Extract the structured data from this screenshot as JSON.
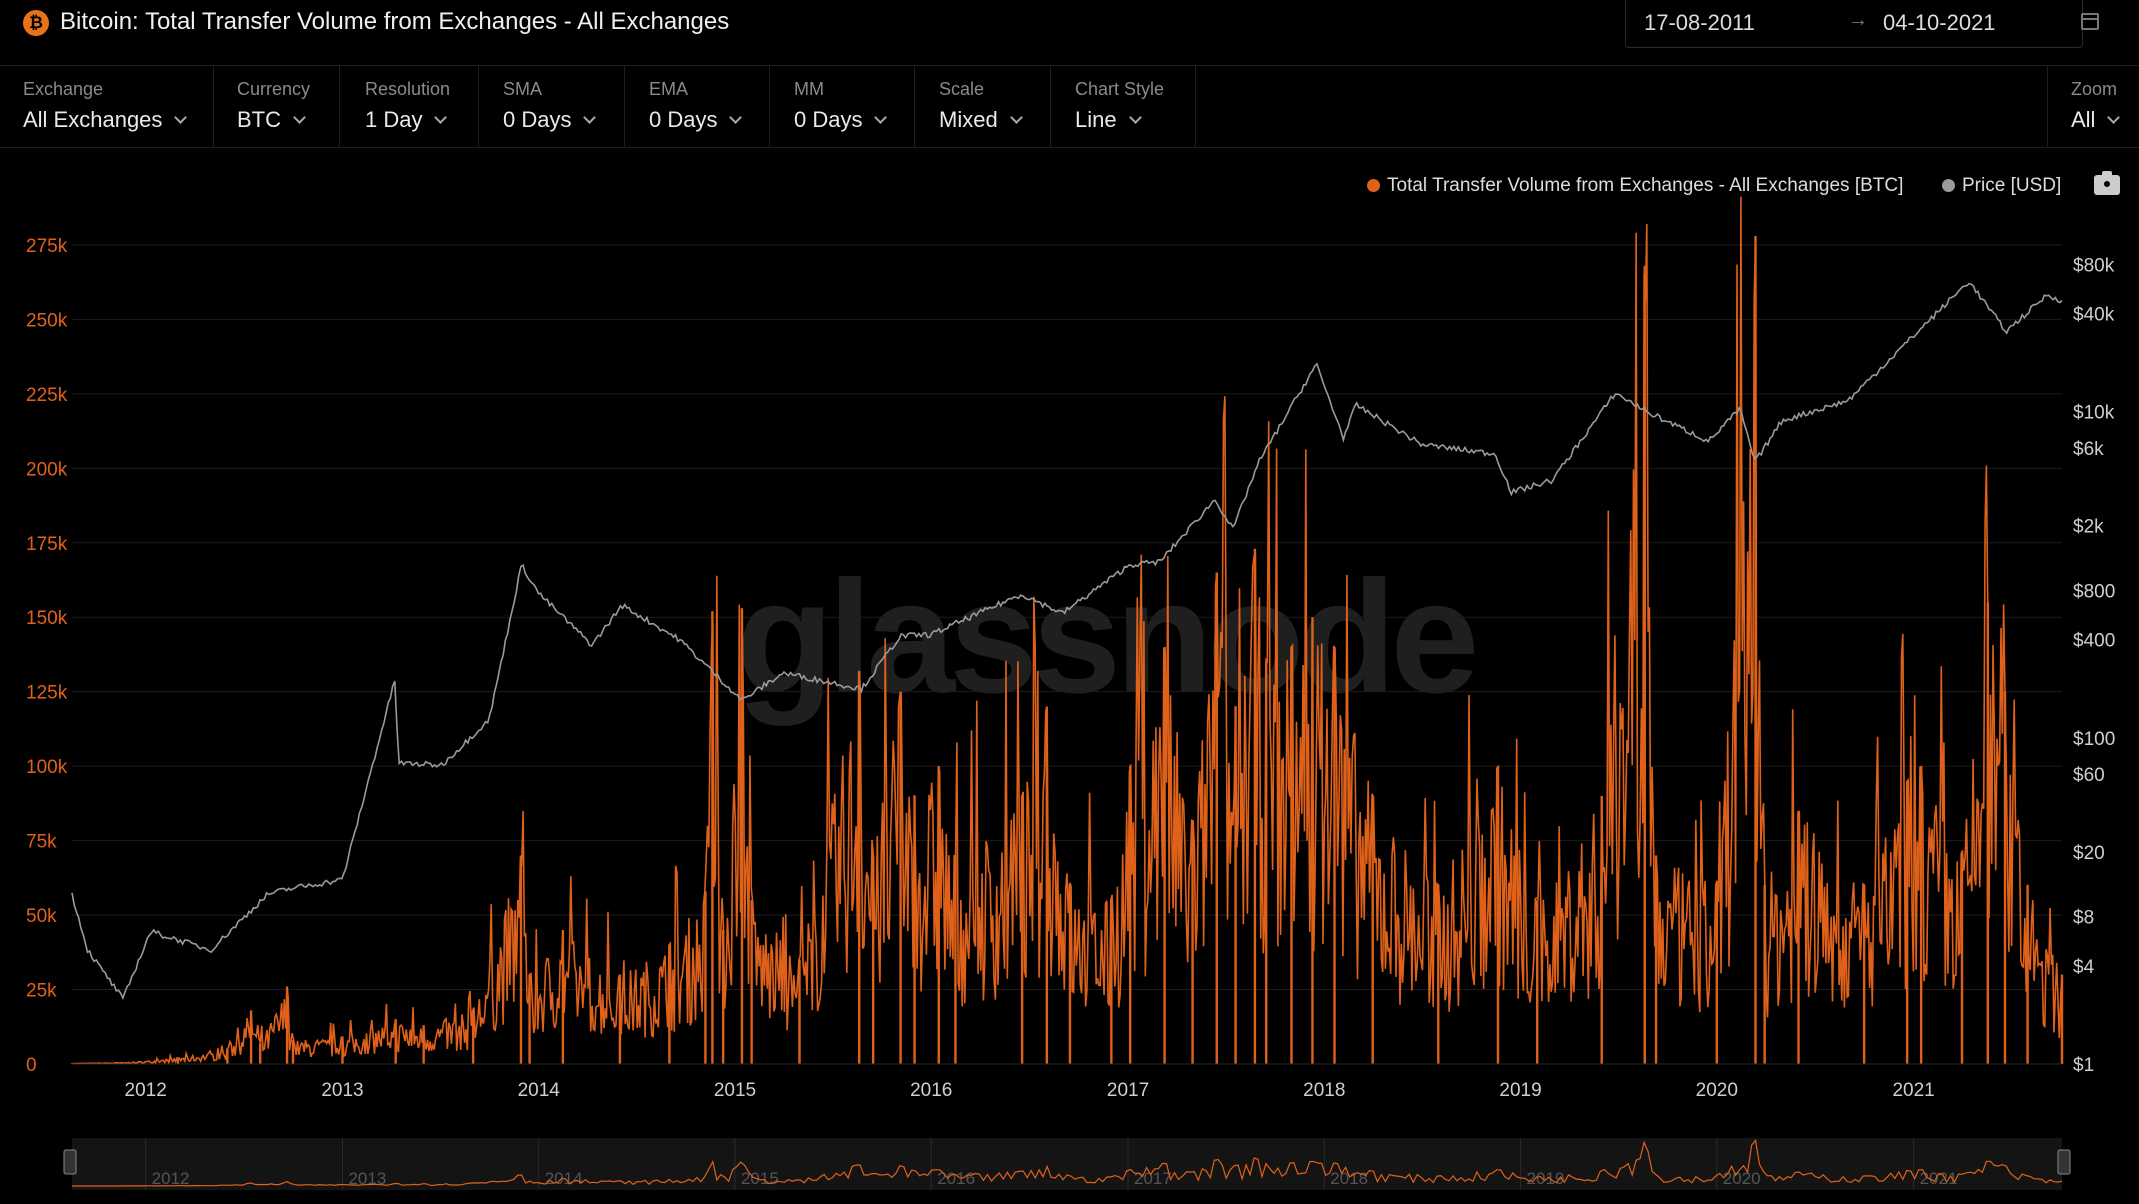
{
  "header": {
    "logo_symbol": "₿",
    "title": "Bitcoin: Total Transfer Volume from Exchanges - All Exchanges",
    "date_from": "17-08-2011",
    "date_arrow": "→",
    "date_to": "04-10-2021",
    "calendar_icon": "calendar-icon"
  },
  "controls": [
    {
      "label": "Exchange",
      "value": "All Exchanges"
    },
    {
      "label": "Currency",
      "value": "BTC"
    },
    {
      "label": "Resolution",
      "value": "1 Day"
    },
    {
      "label": "SMA",
      "value": "0 Days"
    },
    {
      "label": "EMA",
      "value": "0 Days"
    },
    {
      "label": "MM",
      "value": "0 Days"
    },
    {
      "label": "Scale",
      "value": "Mixed"
    },
    {
      "label": "Chart Style",
      "value": "Line"
    }
  ],
  "zoom": {
    "label": "Zoom",
    "value": "All"
  },
  "legend": {
    "volume": "Total Transfer Volume from Exchanges - All Exchanges [BTC]",
    "price": "Price [USD]"
  },
  "watermark": "glassnode",
  "colors": {
    "volume": "#e0621a",
    "price": "#9a9a9a",
    "background": "#000000",
    "grid": "#1c1c1c"
  },
  "chart_data": {
    "type": "line",
    "x_range": [
      "2011-08-17",
      "2021-10-04"
    ],
    "x_ticks": [
      "2012",
      "2013",
      "2014",
      "2015",
      "2016",
      "2017",
      "2018",
      "2019",
      "2020",
      "2021"
    ],
    "left_axis": {
      "ticks": [
        0,
        25000,
        50000,
        75000,
        100000,
        125000,
        150000,
        175000,
        200000,
        225000,
        250000,
        275000
      ],
      "tick_labels": [
        "0",
        "25k",
        "50k",
        "75k",
        "100k",
        "125k",
        "150k",
        "175k",
        "200k",
        "225k",
        "250k",
        "275k"
      ],
      "range": [
        0,
        280000
      ],
      "scale": "linear"
    },
    "right_axis": {
      "ticks": [
        1,
        4,
        8,
        20,
        60,
        100,
        400,
        800,
        2000,
        6000,
        10000,
        40000,
        80000
      ],
      "tick_labels": [
        "$1",
        "$4",
        "$8",
        "$20",
        "$60",
        "$100",
        "$400",
        "$800",
        "$2k",
        "$6k",
        "$10k",
        "$40k",
        "$80k"
      ],
      "scale": "log"
    },
    "series": [
      {
        "name": "Total Transfer Volume from Exchanges - All Exchanges [BTC]",
        "axis": "left",
        "points": [
          [
            "2011-08-17",
            200
          ],
          [
            "2011-12-01",
            500
          ],
          [
            "2012-03-01",
            2000
          ],
          [
            "2012-06-01",
            5000
          ],
          [
            "2012-07-15",
            18000
          ],
          [
            "2012-08-01",
            7000
          ],
          [
            "2012-09-20",
            26000
          ],
          [
            "2012-10-01",
            8000
          ],
          [
            "2013-01-01",
            9000
          ],
          [
            "2013-04-10",
            15000
          ],
          [
            "2013-06-01",
            13000
          ],
          [
            "2013-09-01",
            18000
          ],
          [
            "2013-11-29",
            70000
          ],
          [
            "2013-12-15",
            30000
          ],
          [
            "2014-02-15",
            45000
          ],
          [
            "2014-06-01",
            30000
          ],
          [
            "2014-09-01",
            40000
          ],
          [
            "2014-11-07",
            58000
          ],
          [
            "2014-11-20",
            152000
          ],
          [
            "2014-12-10",
            45000
          ],
          [
            "2015-01-14",
            153000
          ],
          [
            "2015-02-01",
            55000
          ],
          [
            "2015-05-01",
            35000
          ],
          [
            "2015-08-20",
            132000
          ],
          [
            "2015-09-15",
            70000
          ],
          [
            "2015-11-05",
            125000
          ],
          [
            "2015-12-01",
            90000
          ],
          [
            "2016-01-15",
            100000
          ],
          [
            "2016-02-15",
            70000
          ],
          [
            "2016-06-18",
            90000
          ],
          [
            "2016-08-03",
            120000
          ],
          [
            "2016-09-15",
            60000
          ],
          [
            "2016-12-01",
            55000
          ],
          [
            "2017-01-05",
            100000
          ],
          [
            "2017-03-10",
            140000
          ],
          [
            "2017-05-01",
            80000
          ],
          [
            "2017-06-15",
            165000
          ],
          [
            "2017-07-20",
            120000
          ],
          [
            "2017-08-25",
            173000
          ],
          [
            "2017-09-15",
            135000
          ],
          [
            "2017-11-01",
            140000
          ],
          [
            "2017-12-10",
            150000
          ],
          [
            "2018-01-20",
            140000
          ],
          [
            "2018-04-01",
            90000
          ],
          [
            "2018-08-01",
            60000
          ],
          [
            "2018-11-20",
            100000
          ],
          [
            "2019-02-01",
            55000
          ],
          [
            "2019-06-01",
            90000
          ],
          [
            "2019-08-20",
            268000
          ],
          [
            "2019-09-10",
            70000
          ],
          [
            "2020-01-01",
            60000
          ],
          [
            "2020-03-13",
            278000
          ],
          [
            "2020-03-30",
            60000
          ],
          [
            "2020-06-01",
            85000
          ],
          [
            "2020-10-01",
            60000
          ],
          [
            "2020-12-20",
            95000
          ],
          [
            "2021-01-15",
            100000
          ],
          [
            "2021-04-01",
            70000
          ],
          [
            "2021-05-19",
            155000
          ],
          [
            "2021-06-20",
            125000
          ],
          [
            "2021-08-01",
            60000
          ],
          [
            "2021-10-04",
            30000
          ]
        ]
      },
      {
        "name": "Price [USD]",
        "axis": "right",
        "points": [
          [
            "2011-08-17",
            11
          ],
          [
            "2011-09-15",
            5
          ],
          [
            "2011-11-20",
            2.5
          ],
          [
            "2012-01-10",
            6.5
          ],
          [
            "2012-05-01",
            5
          ],
          [
            "2012-08-15",
            11
          ],
          [
            "2012-10-01",
            12
          ],
          [
            "2013-01-01",
            13.5
          ],
          [
            "2013-04-09",
            230
          ],
          [
            "2013-04-15",
            70
          ],
          [
            "2013-07-05",
            68
          ],
          [
            "2013-10-01",
            130
          ],
          [
            "2013-11-30",
            1150
          ],
          [
            "2014-01-01",
            770
          ],
          [
            "2014-04-10",
            370
          ],
          [
            "2014-06-05",
            650
          ],
          [
            "2014-09-20",
            400
          ],
          [
            "2015-01-14",
            170
          ],
          [
            "2015-04-01",
            250
          ],
          [
            "2015-08-25",
            200
          ],
          [
            "2015-11-04",
            420
          ],
          [
            "2016-01-01",
            430
          ],
          [
            "2016-06-17",
            760
          ],
          [
            "2016-09-01",
            580
          ],
          [
            "2017-01-04",
            1150
          ],
          [
            "2017-03-01",
            1200
          ],
          [
            "2017-06-12",
            2900
          ],
          [
            "2017-07-15",
            1900
          ],
          [
            "2017-09-01",
            4900
          ],
          [
            "2017-12-17",
            19500
          ],
          [
            "2018-02-06",
            6900
          ],
          [
            "2018-03-01",
            11000
          ],
          [
            "2018-07-01",
            6300
          ],
          [
            "2018-11-15",
            5500
          ],
          [
            "2018-12-15",
            3200
          ],
          [
            "2019-03-01",
            3800
          ],
          [
            "2019-06-26",
            13000
          ],
          [
            "2019-09-01",
            9700
          ],
          [
            "2019-12-17",
            6600
          ],
          [
            "2020-02-13",
            10400
          ],
          [
            "2020-03-12",
            4900
          ],
          [
            "2020-05-01",
            8800
          ],
          [
            "2020-09-01",
            11700
          ],
          [
            "2020-12-31",
            29000
          ],
          [
            "2021-04-14",
            63000
          ],
          [
            "2021-06-22",
            31000
          ],
          [
            "2021-09-06",
            52000
          ],
          [
            "2021-10-04",
            48000
          ]
        ]
      }
    ],
    "navigator_ticks": [
      "2012",
      "2013",
      "2014",
      "2015",
      "2016",
      "2017",
      "2018",
      "2019",
      "2020",
      "2021"
    ],
    "grid": true,
    "legend_position": "top-right"
  }
}
